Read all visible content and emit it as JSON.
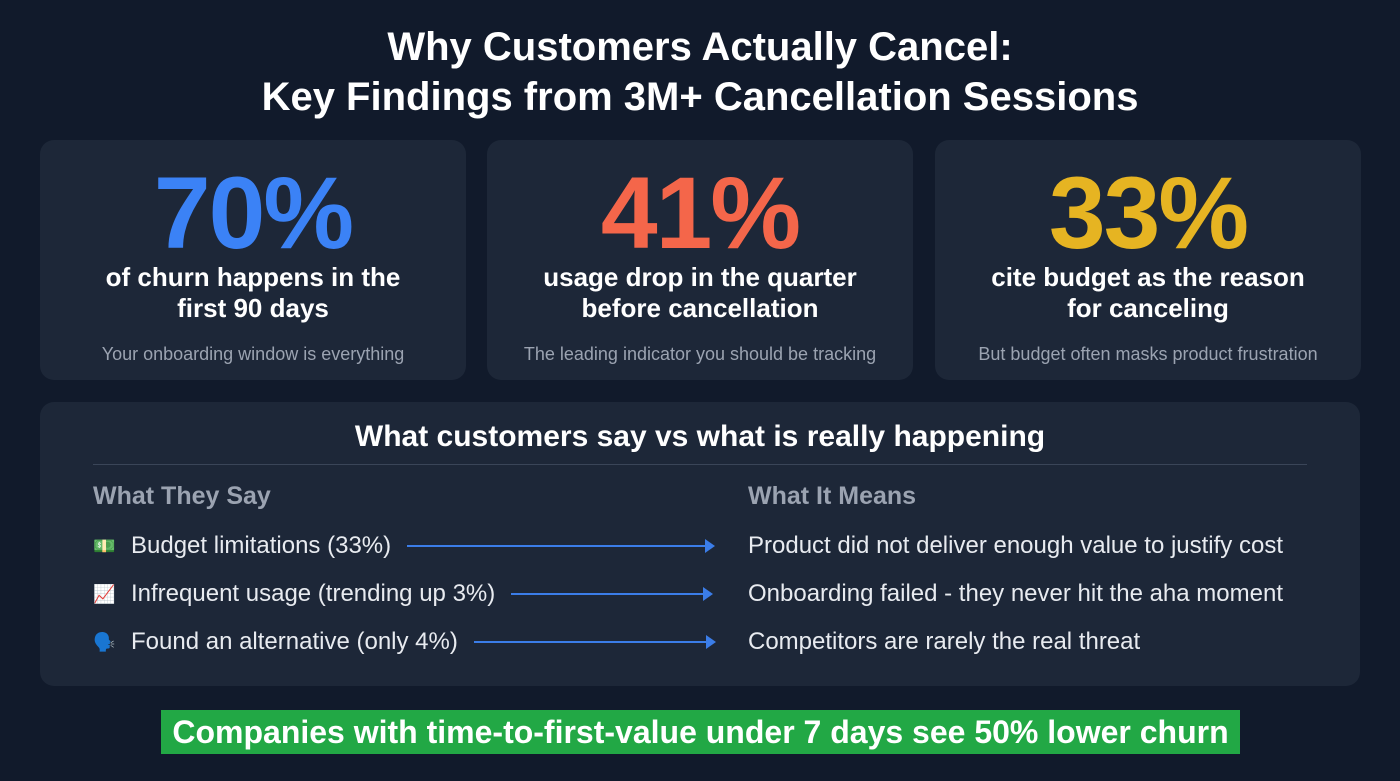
{
  "title": {
    "line1": "Why Customers Actually Cancel:",
    "line2": "Key Findings from 3M+ Cancellation Sessions"
  },
  "stats": [
    {
      "value": "70%",
      "color": "#3b82f6",
      "line1": "of churn happens in the",
      "line2": "first 90 days",
      "caption": "Your onboarding window is everything"
    },
    {
      "value": "41%",
      "color": "#f4664a",
      "line1": "usage drop in the quarter",
      "line2": "before cancellation",
      "caption": "The leading indicator you should be tracking"
    },
    {
      "value": "33%",
      "color": "#e6b422",
      "line1": "cite budget as the reason",
      "line2": "for canceling",
      "caption": "But budget often masks product frustration"
    }
  ],
  "comparison": {
    "heading": "What customers say vs what is really happening",
    "left_header": "What They Say",
    "right_header": "What It Means",
    "rows": [
      {
        "icon": "💵",
        "say": "Budget limitations (33%)",
        "means": "Product did not deliver enough value to justify cost"
      },
      {
        "icon": "📈",
        "say": "Infrequent usage (trending up 3%)",
        "means": "Onboarding failed - they never hit the aha moment"
      },
      {
        "icon": "🗣️",
        "say": "Found an alternative (only 4%)",
        "means": "Competitors are rarely the real threat"
      }
    ]
  },
  "banner": "Companies with time-to-first-value under 7 days see 50% lower churn"
}
